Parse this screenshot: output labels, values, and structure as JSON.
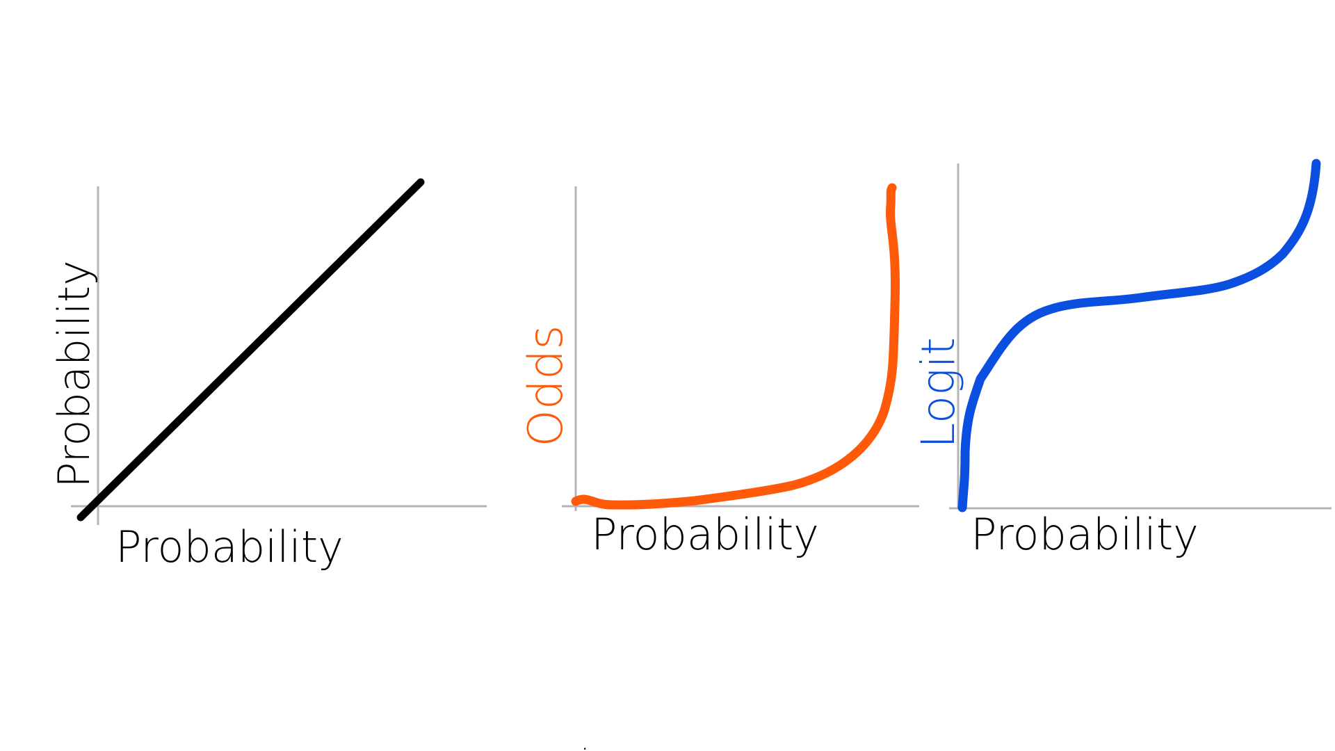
{
  "chart_data": [
    {
      "type": "line",
      "xlabel": "Probability",
      "ylabel": "Probability",
      "colors": {
        "line": "#000000",
        "xlabel": "#000000",
        "ylabel": "#000000",
        "axis": "#b4b4b4"
      },
      "series": [
        {
          "x": [
            0.0,
            0.25,
            0.5,
            0.75,
            1.0
          ],
          "y": [
            0.0,
            0.25,
            0.5,
            0.75,
            1.0
          ]
        }
      ]
    },
    {
      "type": "line",
      "xlabel": "Probability",
      "ylabel": "Odds",
      "colors": {
        "line": "#ff5a0a",
        "xlabel": "#000000",
        "ylabel": "#ff5a0a",
        "axis": "#b4b4b4"
      },
      "series": [
        {
          "x": [
            0.0,
            0.1,
            0.2,
            0.3,
            0.4,
            0.5,
            0.6,
            0.7,
            0.8,
            0.85,
            0.9,
            0.93,
            0.95,
            0.97,
            0.98
          ],
          "y": [
            0.0,
            0.11,
            0.25,
            0.43,
            0.67,
            1.0,
            1.5,
            2.33,
            4.0,
            5.67,
            9.0,
            13.3,
            19.0,
            32.3,
            49.0
          ]
        }
      ]
    },
    {
      "type": "line",
      "xlabel": "Probability",
      "ylabel": "Logit",
      "colors": {
        "line": "#0a4fe0",
        "xlabel": "#000000",
        "ylabel": "#0a4fe0",
        "axis": "#b4b4b4"
      },
      "series": [
        {
          "x": [
            0.02,
            0.05,
            0.1,
            0.2,
            0.3,
            0.4,
            0.5,
            0.6,
            0.7,
            0.8,
            0.9,
            0.95,
            0.98
          ],
          "y": [
            -3.89,
            -2.94,
            -2.2,
            -1.39,
            -0.85,
            -0.41,
            0.0,
            0.41,
            0.85,
            1.39,
            2.2,
            2.94,
            3.89
          ]
        }
      ]
    }
  ],
  "footer": {
    "dot": "."
  }
}
